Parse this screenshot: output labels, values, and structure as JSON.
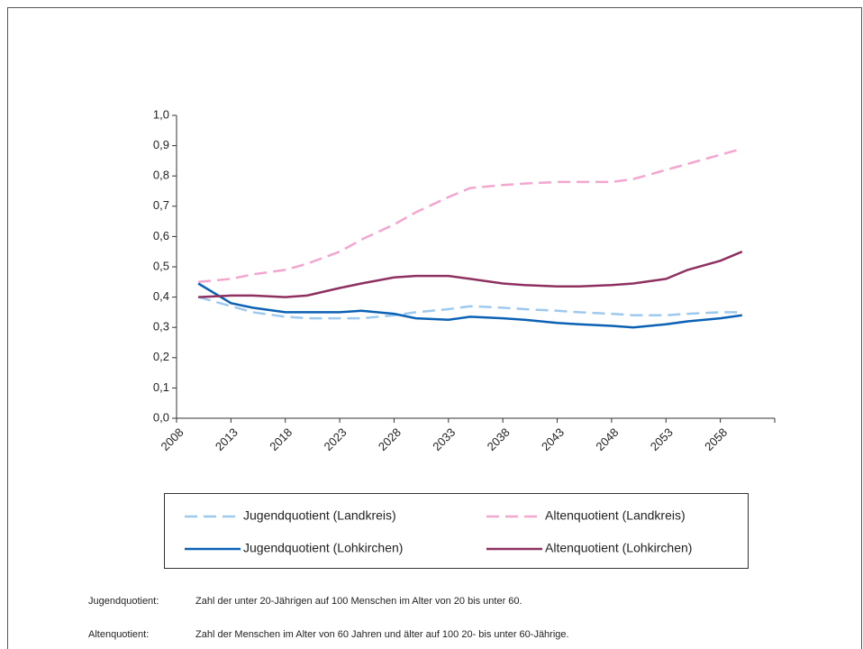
{
  "chart_data": {
    "type": "line",
    "x": [
      2010,
      2013,
      2015,
      2018,
      2020,
      2023,
      2025,
      2028,
      2030,
      2033,
      2035,
      2038,
      2040,
      2043,
      2045,
      2048,
      2050,
      2053,
      2055,
      2058,
      2060
    ],
    "series": [
      {
        "name": "Jugendquotient (Landkreis)",
        "color": "#9ec9ef",
        "style": "dashed",
        "values": [
          0.4,
          0.37,
          0.35,
          0.335,
          0.33,
          0.33,
          0.33,
          0.34,
          0.35,
          0.36,
          0.37,
          0.365,
          0.36,
          0.355,
          0.35,
          0.345,
          0.34,
          0.34,
          0.345,
          0.35,
          0.35
        ]
      },
      {
        "name": "Altenquotient (Landkreis)",
        "color": "#f4a6cf",
        "style": "dashed",
        "values": [
          0.45,
          0.46,
          0.475,
          0.49,
          0.51,
          0.55,
          0.59,
          0.64,
          0.68,
          0.73,
          0.76,
          0.77,
          0.775,
          0.78,
          0.78,
          0.78,
          0.79,
          0.82,
          0.84,
          0.87,
          0.89
        ]
      },
      {
        "name": "Jugendquotient (Lohkirchen)",
        "color": "#0b62b4",
        "style": "solid",
        "values": [
          0.445,
          0.38,
          0.365,
          0.35,
          0.35,
          0.35,
          0.355,
          0.345,
          0.33,
          0.325,
          0.335,
          0.33,
          0.325,
          0.315,
          0.31,
          0.305,
          0.3,
          0.31,
          0.32,
          0.33,
          0.34
        ]
      },
      {
        "name": "Altenquotient (Lohkirchen)",
        "color": "#8e3060",
        "style": "solid",
        "values": [
          0.4,
          0.405,
          0.405,
          0.4,
          0.405,
          0.43,
          0.445,
          0.465,
          0.47,
          0.47,
          0.46,
          0.445,
          0.44,
          0.435,
          0.435,
          0.44,
          0.445,
          0.46,
          0.49,
          0.52,
          0.55
        ]
      }
    ],
    "xlim": [
      2008,
      2063
    ],
    "xticks": [
      2008,
      2013,
      2018,
      2023,
      2028,
      2033,
      2038,
      2043,
      2048,
      2053,
      2058
    ],
    "ylim": [
      0,
      1
    ],
    "yticks": [
      {
        "value": 0,
        "label": "0,0"
      },
      {
        "value": 0.1,
        "label": "0,1"
      },
      {
        "value": 0.2,
        "label": "0,2"
      },
      {
        "value": 0.3,
        "label": "0,3"
      },
      {
        "value": 0.4,
        "label": "0,4"
      },
      {
        "value": 0.5,
        "label": "0,5"
      },
      {
        "value": 0.6,
        "label": "0,6"
      },
      {
        "value": 0.7,
        "label": "0,7"
      },
      {
        "value": 0.8,
        "label": "0,8"
      },
      {
        "value": 0.9,
        "label": "0,9"
      },
      {
        "value": 1,
        "label": "1,0"
      }
    ],
    "grid": false,
    "legend": "bottom",
    "notes": [
      {
        "term": "Jugendquotient:",
        "text": "Zahl der unter 20-Jährigen auf 100 Menschen im Alter von 20 bis unter 60."
      },
      {
        "term": "Altenquotient:",
        "text": "Zahl der Menschen im Alter von 60 Jahren und älter auf 100 20- bis unter 60-Jährige."
      }
    ]
  }
}
